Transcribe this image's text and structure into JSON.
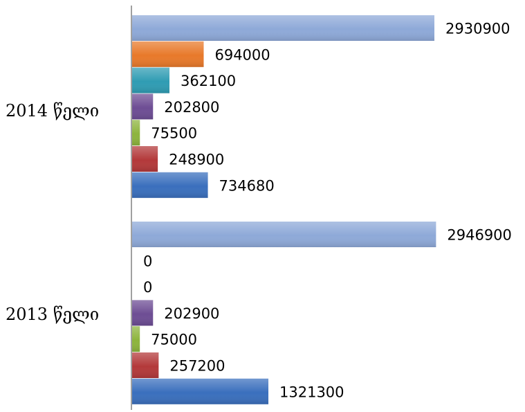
{
  "chart_data": {
    "type": "bar",
    "orientation": "horizontal",
    "categories": [
      "2014 წელი",
      "2013 წელი"
    ],
    "series": [
      {
        "values": [
          2930900,
          2946900
        ],
        "color": "#8ea9d8"
      },
      {
        "values": [
          694000,
          0
        ],
        "color": "#e8792a"
      },
      {
        "values": [
          362100,
          0
        ],
        "color": "#2f9cb3"
      },
      {
        "values": [
          202800,
          202900
        ],
        "color": "#6d4d94"
      },
      {
        "values": [
          75500,
          75000
        ],
        "color": "#8db43d"
      },
      {
        "values": [
          248900,
          257200
        ],
        "color": "#b3393a"
      },
      {
        "values": [
          734680,
          1321300
        ],
        "color": "#3a6fbd"
      }
    ],
    "data_labels": true,
    "grid": false,
    "legend": false
  }
}
